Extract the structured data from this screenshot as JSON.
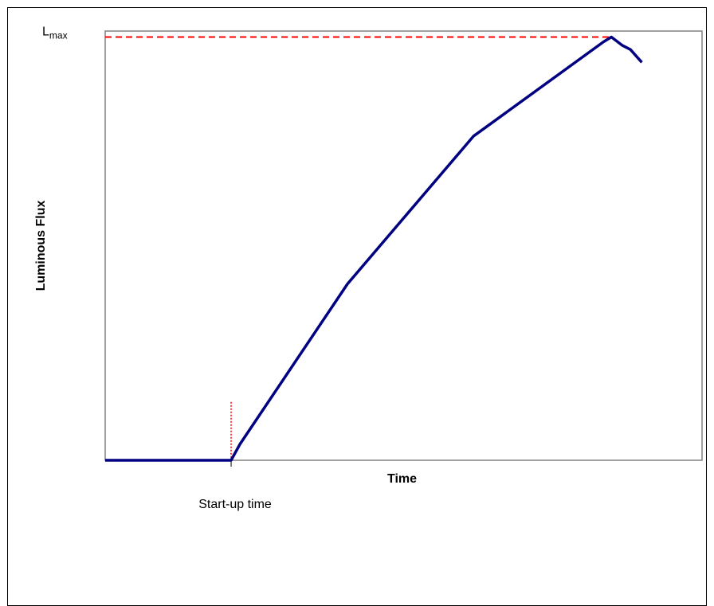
{
  "chart_data": {
    "type": "line",
    "title": "",
    "xlabel": "Time",
    "ylabel": "Luminous Flux",
    "grid": false,
    "legend": "none",
    "xlim": [
      0,
      100
    ],
    "ylim": [
      0,
      100
    ],
    "series": [
      {
        "color": "#000080",
        "x": [
          0,
          21.1,
          22.6,
          40.6,
          61.7,
          83.5,
          84.8,
          86.6,
          88.0,
          89.9
        ],
        "y": [
          0,
          0,
          3.8,
          41.1,
          75.5,
          97.5,
          98.6,
          96.7,
          95.7,
          92.7
        ]
      }
    ],
    "annotations": {
      "lmax_label_main": "L",
      "lmax_label_sub": "max",
      "lmax_value": 98.6,
      "lmax_line_color": "#ff0000",
      "startup_label": "Start-up time",
      "startup_x": 21.1,
      "startup_marker_top": 13.6,
      "startup_marker_color": "#ff0000"
    }
  }
}
